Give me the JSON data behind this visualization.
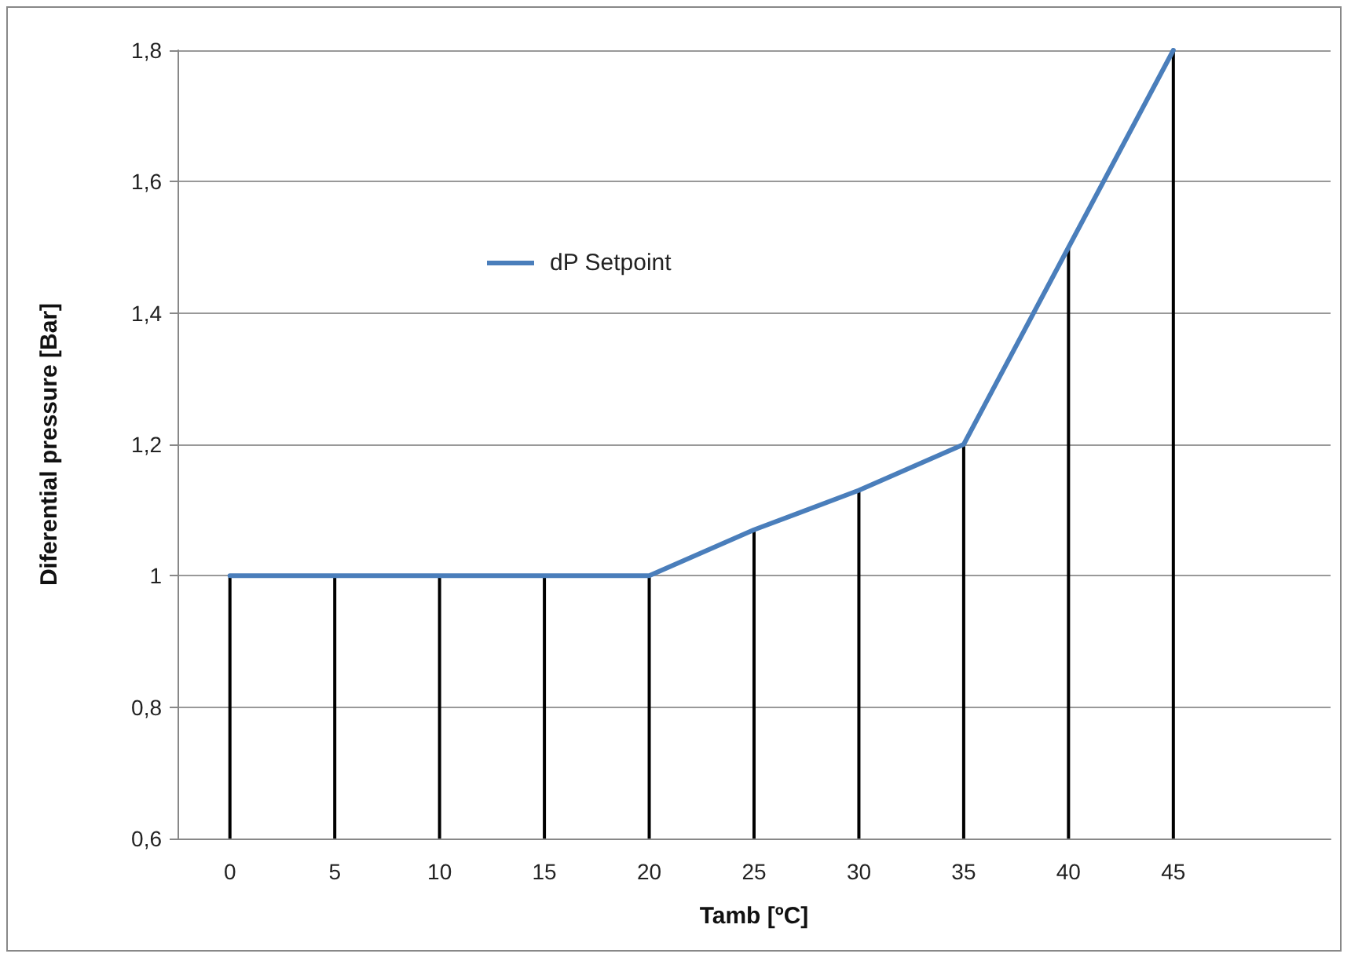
{
  "chart_data": {
    "type": "line",
    "xlabel": "Tamb [ºC]",
    "ylabel": "Diferential pressure [Bar]",
    "categories": [
      "0",
      "5",
      "10",
      "15",
      "20",
      "25",
      "30",
      "35",
      "40",
      "45",
      null
    ],
    "series": [
      {
        "name": "dP Setpoint",
        "color": "#4a7ebb",
        "values": [
          1,
          1,
          1,
          1,
          1,
          1.07,
          1.13,
          1.2,
          1.5,
          1.8,
          null
        ]
      },
      {
        "type": "bar",
        "color": "#000000",
        "values": [
          1,
          1,
          1,
          1,
          1,
          1.07,
          1.13,
          1.2,
          1.5,
          1.8,
          null
        ]
      }
    ],
    "ylim": [
      0.6,
      1.8
    ],
    "yticks": [
      {
        "value": 0.6,
        "label": "0,6"
      },
      {
        "value": 0.8,
        "label": "0,8"
      },
      {
        "value": 1,
        "label": "1"
      },
      {
        "value": 1.2,
        "label": "1,2"
      },
      {
        "value": 1.4,
        "label": "1,4"
      },
      {
        "value": 1.6,
        "label": "1,6"
      },
      {
        "value": 1.8,
        "label": "1,8"
      }
    ],
    "grid": "y",
    "legend": "top left",
    "marker": "none",
    "line_style": "solid"
  }
}
